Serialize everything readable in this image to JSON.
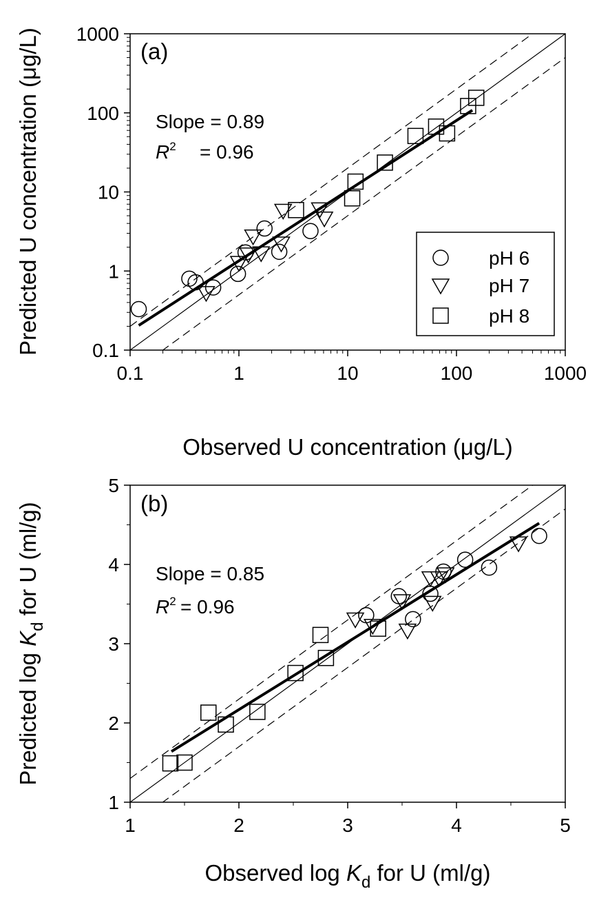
{
  "chart_data": [
    {
      "type": "scatter",
      "panel_label": "(a)",
      "xlabel": "Observed U concentration (μg/L)",
      "ylabel": "Predicted U concentration (μg/L)",
      "xscale": "log",
      "yscale": "log",
      "xlim": [
        0.1,
        1000
      ],
      "ylim": [
        0.1,
        1000
      ],
      "xticks": [
        "0.1",
        "1",
        "10",
        "100",
        "1000"
      ],
      "yticks": [
        "0.1",
        "1",
        "10",
        "100",
        "1000"
      ],
      "annotations": {
        "slope": "Slope = 0.89",
        "r2_symbol": "R",
        "r2_exp": "2",
        "r2_value": "= 0.96"
      },
      "legend": {
        "placement": "bottom-right",
        "entries": [
          "pH 6",
          "pH 7",
          "pH 8"
        ]
      },
      "series": [
        {
          "name": "pH 6",
          "marker": "circle",
          "x": [
            0.12,
            0.35,
            0.4,
            0.58,
            0.98,
            1.15,
            1.72,
            2.35,
            4.55
          ],
          "y": [
            0.33,
            0.8,
            0.72,
            0.62,
            0.92,
            1.72,
            3.45,
            1.75,
            3.2
          ]
        },
        {
          "name": "pH 7",
          "marker": "triangle-down",
          "x": [
            0.5,
            1.0,
            1.22,
            1.35,
            1.6,
            2.45,
            2.55,
            5.55,
            6.1
          ],
          "y": [
            0.52,
            1.25,
            1.6,
            2.7,
            1.65,
            2.2,
            5.7,
            5.95,
            4.55
          ]
        },
        {
          "name": "pH 8",
          "marker": "square",
          "x": [
            3.35,
            11.0,
            11.8,
            22.0,
            42.0,
            65.0,
            82.0,
            128.0,
            152.0
          ],
          "y": [
            5.9,
            8.3,
            13.5,
            23.5,
            51.0,
            67.0,
            55.0,
            122.0,
            155.0
          ]
        }
      ],
      "fit_line": {
        "x": [
          0.12,
          140
        ],
        "y": [
          0.205,
          108
        ]
      },
      "identity_line": true,
      "bounds": "dashed lines at 2x and 0.5x of 1:1"
    },
    {
      "type": "scatter",
      "panel_label": "(b)",
      "xlabel_parts": [
        "Observed log ",
        "K",
        "d",
        " for U (ml/g)"
      ],
      "ylabel_parts": [
        "Predicted log ",
        "K",
        "d",
        " for U (ml/g)"
      ],
      "xlim": [
        1,
        5
      ],
      "ylim": [
        1,
        5
      ],
      "xticks": [
        "1",
        "2",
        "3",
        "4",
        "5"
      ],
      "yticks": [
        "1",
        "2",
        "3",
        "4",
        "5"
      ],
      "annotations": {
        "slope": "Slope = 0.85",
        "r2_symbol": "R",
        "r2_exp": "2",
        "r2_value": "= 0.96"
      },
      "series": [
        {
          "name": "pH 6",
          "marker": "circle",
          "x": [
            3.17,
            3.47,
            3.6,
            3.76,
            3.88,
            4.08,
            4.3,
            4.76
          ],
          "y": [
            3.36,
            3.6,
            3.31,
            3.63,
            3.91,
            4.06,
            3.96,
            4.36
          ]
        },
        {
          "name": "pH 7",
          "marker": "triangle-down",
          "x": [
            3.07,
            3.23,
            3.5,
            3.55,
            3.76,
            3.78,
            3.84,
            3.9,
            4.57
          ],
          "y": [
            3.3,
            3.22,
            3.53,
            3.16,
            3.82,
            3.51,
            3.82,
            3.87,
            4.26
          ]
        },
        {
          "name": "pH 8",
          "marker": "square",
          "x": [
            1.37,
            1.5,
            1.72,
            1.88,
            2.17,
            2.52,
            2.75,
            2.8,
            3.28
          ],
          "y": [
            1.49,
            1.5,
            2.13,
            1.98,
            2.14,
            2.63,
            3.11,
            2.82,
            3.19
          ]
        }
      ],
      "fit_line": {
        "x": [
          1.38,
          4.76
        ],
        "y": [
          1.64,
          4.52
        ]
      },
      "identity_line": true,
      "bounds": "dashed lines at +/-0.3 log units of 1:1"
    }
  ]
}
